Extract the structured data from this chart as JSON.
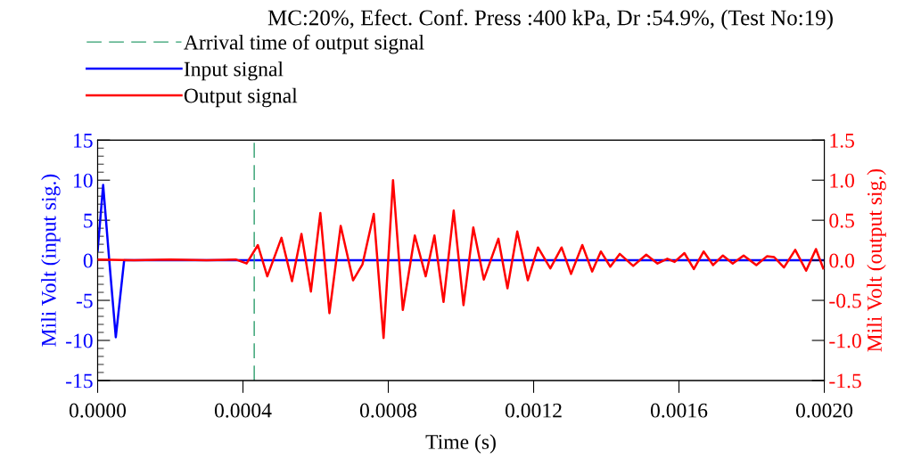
{
  "chart_data": {
    "type": "line",
    "title": "MC:20%, Efect. Conf. Press :400 kPa, Dr :54.9%, (Test No:19)",
    "xlabel": "Time (s)",
    "ylabel": "Mili Volt (input sig.)",
    "y2label": "Mili Volt (output sig.)",
    "series": [
      {
        "name": "Input signal",
        "color": "#0000ff",
        "x": [
          0,
          1.52e-05,
          3.2e-05,
          5e-05,
          7.3e-05,
          0.002
        ],
        "values": [
          1.2,
          9.4,
          0,
          -9.6,
          0,
          0
        ]
      },
      {
        "name": "Output signal",
        "color": "#ff0000",
        "axis": "y2",
        "x": [
          0,
          0.0001,
          0.0002,
          0.0003,
          0.00038,
          0.00041,
          0.000441,
          0.000467,
          0.000506,
          0.000535,
          0.000561,
          0.000587,
          0.000613,
          0.000638,
          0.000669,
          0.000703,
          0.000729,
          0.00076,
          0.000787,
          0.000813,
          0.00084,
          0.000873,
          0.000903,
          0.000927,
          0.000952,
          0.00098,
          0.001007,
          0.001034,
          0.001063,
          0.001103,
          0.001128,
          0.001155,
          0.001184,
          0.001212,
          0.001246,
          0.001277,
          0.001303,
          0.001334,
          0.001361,
          0.001385,
          0.001411,
          0.001437,
          0.001474,
          0.00151,
          0.001541,
          0.001568,
          0.001588,
          0.001615,
          0.001641,
          0.001668,
          0.001694,
          0.001721,
          0.001748,
          0.001778,
          0.001813,
          0.001842,
          0.001862,
          0.001889,
          0.00192,
          0.00195,
          0.001977,
          0.001997
        ],
        "values": [
          0.01,
          0,
          0.01,
          0,
          0.01,
          -0.04,
          0.19,
          -0.2,
          0.28,
          -0.26,
          0.33,
          -0.39,
          0.59,
          -0.66,
          0.43,
          -0.25,
          -0.05,
          0.58,
          -0.97,
          1.0,
          -0.62,
          0.31,
          -0.2,
          0.31,
          -0.52,
          0.62,
          -0.56,
          0.41,
          -0.24,
          0.27,
          -0.35,
          0.36,
          -0.25,
          0.16,
          -0.1,
          0.16,
          -0.17,
          0.19,
          -0.14,
          0.11,
          -0.08,
          0.08,
          -0.07,
          0.07,
          -0.04,
          0.02,
          -0.02,
          0.09,
          -0.11,
          0.11,
          -0.06,
          0.06,
          -0.04,
          0.06,
          -0.06,
          0.05,
          0.04,
          -0.09,
          0.13,
          -0.13,
          0.14,
          -0.1
        ]
      }
    ],
    "ref_lines": [
      {
        "axis": "x",
        "value": 0.000431,
        "label": "Arrival time of output signal",
        "color": "#2e9e6e",
        "line_style": "dashed"
      }
    ],
    "xlim": [
      0,
      0.002
    ],
    "xticks": [
      {
        "value": 0,
        "label": "0.0000"
      },
      {
        "value": 0.0004,
        "label": "0.0004"
      },
      {
        "value": 0.0008,
        "label": "0.0008"
      },
      {
        "value": 0.0012,
        "label": "0.0012"
      },
      {
        "value": 0.0016,
        "label": "0.0016"
      },
      {
        "value": 0.002,
        "label": "0.0020"
      }
    ],
    "ylim": [
      -15,
      15
    ],
    "yticks": [
      -15,
      -10,
      -5,
      0,
      5,
      10,
      15
    ],
    "y2lim": [
      -1.5,
      1.5
    ],
    "y2ticks": [
      {
        "value": -1.5,
        "label": "-1.5"
      },
      {
        "value": -1.0,
        "label": "-1.0"
      },
      {
        "value": -0.5,
        "label": "-0.5"
      },
      {
        "value": 0,
        "label": "0.0"
      },
      {
        "value": 0.5,
        "label": "0.5"
      },
      {
        "value": 1.0,
        "label": "1.0"
      },
      {
        "value": 1.5,
        "label": "1.5"
      }
    ],
    "grid": false,
    "legend": "top left",
    "line_style": "solid",
    "marker": "none"
  }
}
